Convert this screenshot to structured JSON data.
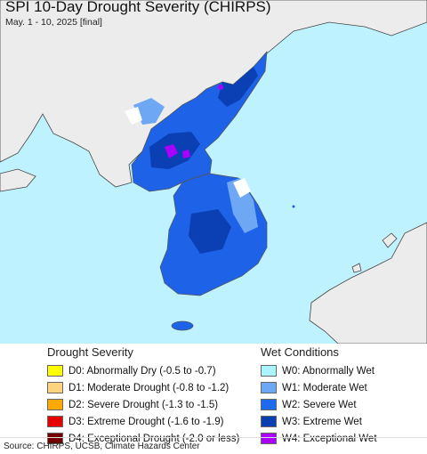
{
  "title": "SPI 10-Day Drought Severity (CHIRPS)",
  "subtitle": "May. 1 - 10, 2025 [final]",
  "colors": {
    "ocean": "#bff2ff",
    "land_outside": "#ececec",
    "border": "#555555"
  },
  "legend": {
    "drought": {
      "title": "Drought Severity",
      "items": [
        {
          "code": "D0",
          "label": "D0: Abnormally Dry (-0.5 to -0.7)",
          "color": "#ffff00"
        },
        {
          "code": "D1",
          "label": "D1: Moderate Drought (-0.8 to -1.2)",
          "color": "#fcd37f"
        },
        {
          "code": "D2",
          "label": "D2: Severe Drought (-1.3 to -1.5)",
          "color": "#ffaa00"
        },
        {
          "code": "D3",
          "label": "D3: Extreme Drought (-1.6 to -1.9)",
          "color": "#e60000"
        },
        {
          "code": "D4",
          "label": "D4: Exceptional Drought (-2.0 or less)",
          "color": "#730000"
        }
      ]
    },
    "wet": {
      "title": "Wet Conditions",
      "items": [
        {
          "code": "W0",
          "label": "W0: Abnormally Wet",
          "color": "#aaf5ff"
        },
        {
          "code": "W1",
          "label": "W1: Moderate Wet",
          "color": "#6ea8f5"
        },
        {
          "code": "W2",
          "label": "W2: Severe Wet",
          "color": "#1f6bf0"
        },
        {
          "code": "W3",
          "label": "W3: Extreme Wet",
          "color": "#0a3fb0"
        },
        {
          "code": "W4",
          "label": "W4: Exceptional Wet",
          "color": "#aa00ff"
        }
      ]
    }
  },
  "source": "Source: CHIRPS, UCSB, Climate Hazards Center"
}
